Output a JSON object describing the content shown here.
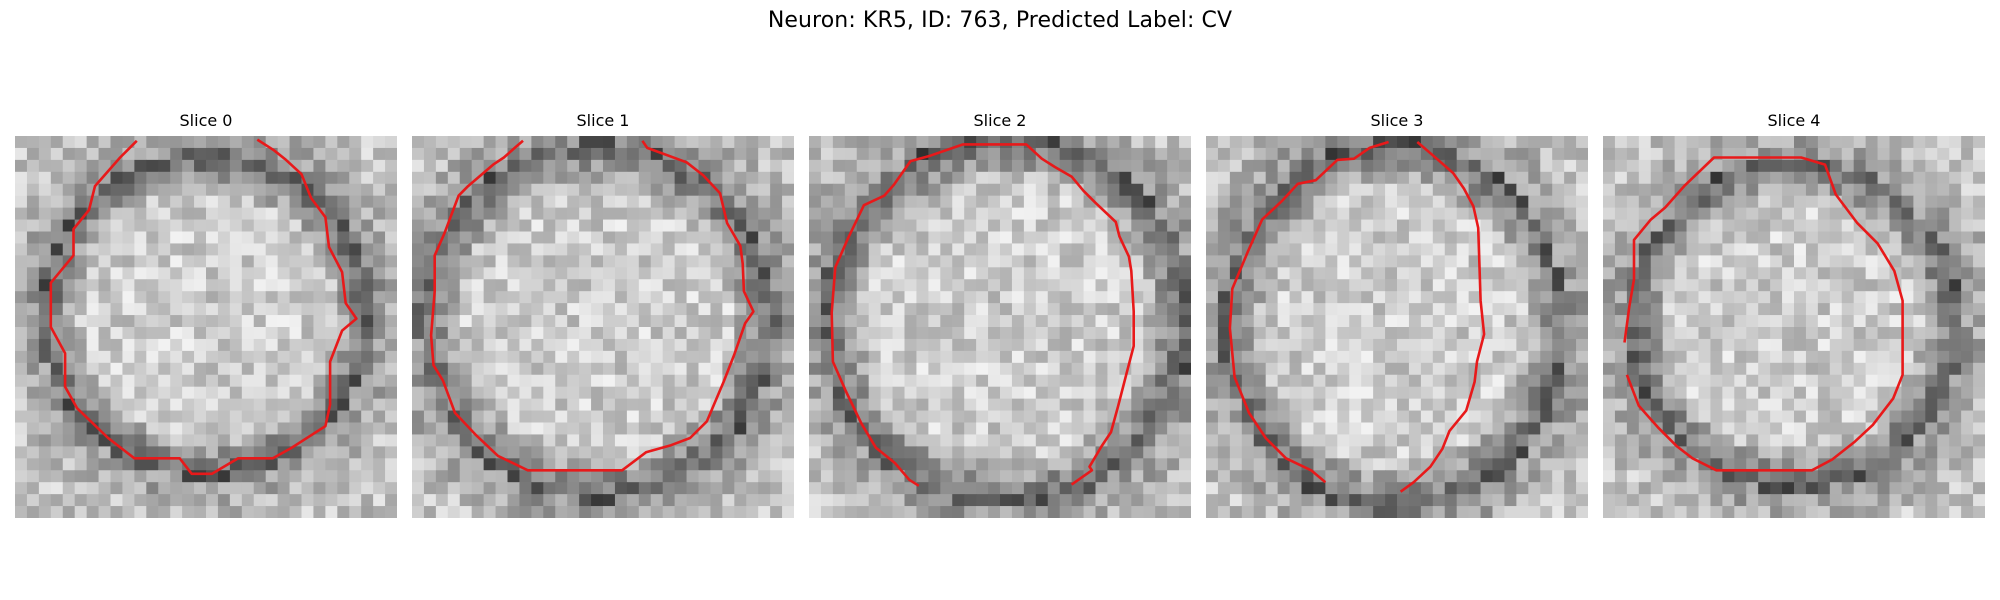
{
  "figure": {
    "title": "Neuron: KR5, ID: 763, Predicted Label: CV"
  },
  "panels": [
    {
      "title": "Slice 0"
    },
    {
      "title": "Slice 1"
    },
    {
      "title": "Slice 2"
    },
    {
      "title": "Slice 3"
    },
    {
      "title": "Slice 4"
    }
  ],
  "colors": {
    "background": "#ffffff",
    "contour": "#e8191a",
    "colormap": "grayscale"
  }
}
